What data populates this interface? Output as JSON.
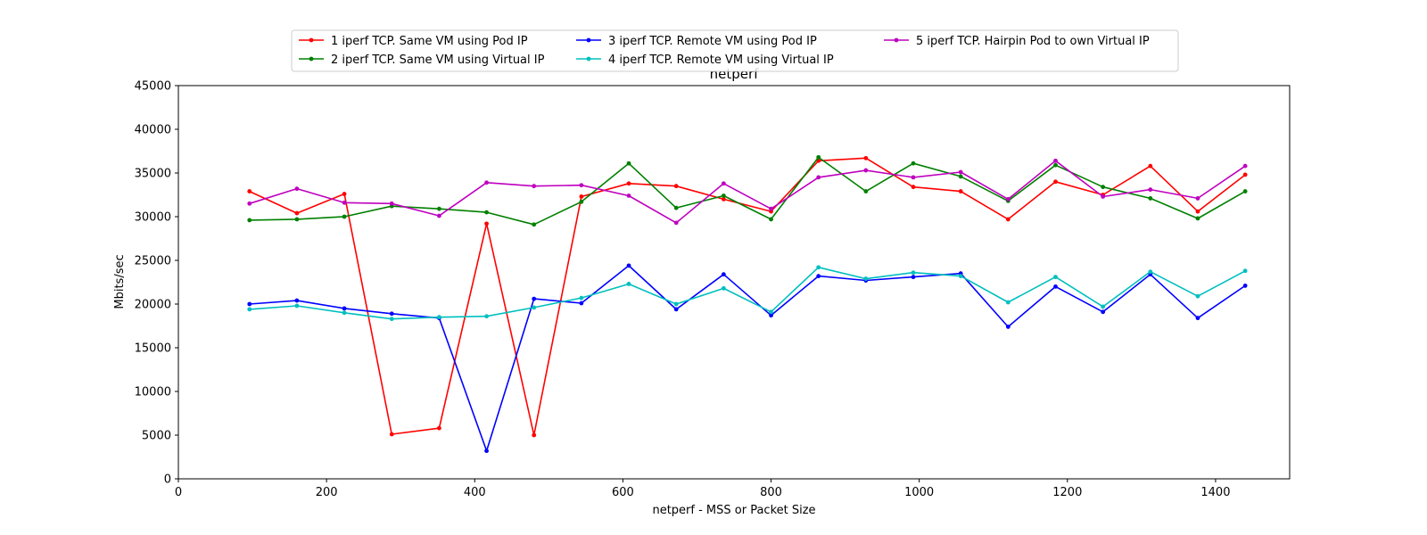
{
  "chart_data": {
    "type": "line",
    "title": "netperf",
    "xlabel": "netperf - MSS or Packet Size",
    "ylabel": "Mbits/sec",
    "xlim": [
      0,
      1500
    ],
    "ylim": [
      0,
      45000
    ],
    "xticks": [
      0,
      200,
      400,
      600,
      800,
      1000,
      1200,
      1400
    ],
    "yticks": [
      0,
      5000,
      10000,
      15000,
      20000,
      25000,
      30000,
      35000,
      40000,
      45000
    ],
    "grid": false,
    "legend_position": "top-center",
    "x": [
      96,
      160,
      224,
      288,
      352,
      416,
      480,
      544,
      608,
      672,
      736,
      800,
      864,
      928,
      992,
      1056,
      1120,
      1184,
      1248,
      1312,
      1376,
      1440
    ],
    "series": [
      {
        "name": "1 iperf TCP. Same VM using Pod IP",
        "color": "#ff0000",
        "values": [
          32900,
          30400,
          32600,
          5100,
          5800,
          29200,
          5000,
          32300,
          33800,
          33500,
          32000,
          30600,
          36400,
          36700,
          33400,
          32900,
          29700,
          34000,
          32500,
          35800,
          30600,
          34800
        ]
      },
      {
        "name": "2 iperf TCP. Same VM using Virtual IP",
        "color": "#008000",
        "values": [
          29600,
          29700,
          30000,
          31200,
          30900,
          30500,
          29100,
          31700,
          36100,
          31000,
          32400,
          29700,
          36800,
          32900,
          36100,
          34600,
          31800,
          35900,
          33400,
          32100,
          29800,
          32900
        ]
      },
      {
        "name": "3 iperf TCP. Remote VM using Pod IP",
        "color": "#0000ff",
        "values": [
          20000,
          20400,
          19500,
          18900,
          18400,
          3200,
          20600,
          20100,
          24400,
          19400,
          23400,
          18700,
          23200,
          22700,
          23100,
          23500,
          17400,
          22000,
          19100,
          23400,
          18400,
          22100
        ]
      },
      {
        "name": "4 iperf TCP. Remote VM using Virtual IP",
        "color": "#00bfbf",
        "values": [
          19400,
          19800,
          19000,
          18300,
          18500,
          18600,
          19600,
          20700,
          22300,
          20000,
          21800,
          19100,
          24200,
          22900,
          23600,
          23200,
          20200,
          23100,
          19700,
          23700,
          20900,
          23800
        ]
      },
      {
        "name": "5 iperf TCP. Hairpin Pod to own Virtual IP",
        "color": "#bf00bf",
        "values": [
          31500,
          33200,
          31600,
          31500,
          30100,
          33900,
          33500,
          33600,
          32400,
          29300,
          33800,
          30900,
          34500,
          35300,
          34500,
          35100,
          32000,
          36400,
          32300,
          33100,
          32100,
          35800
        ]
      }
    ]
  }
}
